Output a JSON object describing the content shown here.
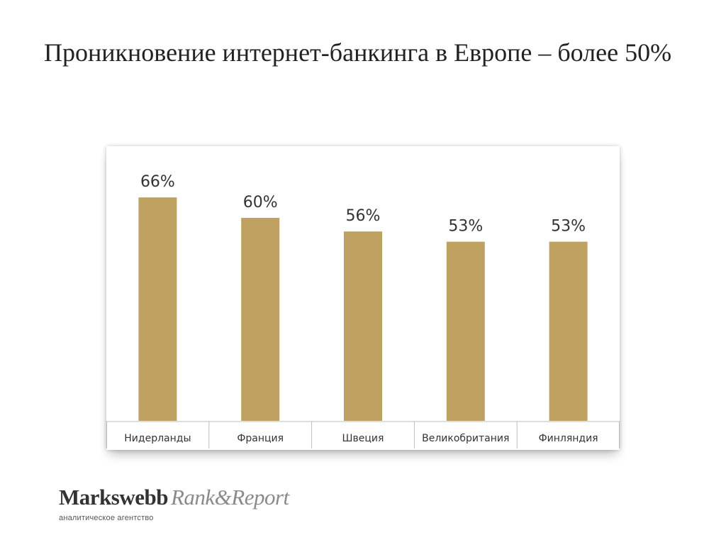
{
  "slide": {
    "title": "Проникновение интернет-банкинга в Европе – более 50%"
  },
  "chart_data": {
    "type": "bar",
    "categories": [
      "Нидерланды",
      "Франция",
      "Швеция",
      "Великобритания",
      "Финляндия"
    ],
    "values": [
      66,
      60,
      56,
      53,
      53
    ],
    "value_labels": [
      "66%",
      "60%",
      "56%",
      "53%",
      "53%"
    ],
    "ylim": [
      0,
      70
    ],
    "grid": false,
    "bar_color": "#bfa162"
  },
  "logo": {
    "brand": "Markswebb",
    "sub": "Rank&Report",
    "tagline": "аналитическое агентство"
  }
}
